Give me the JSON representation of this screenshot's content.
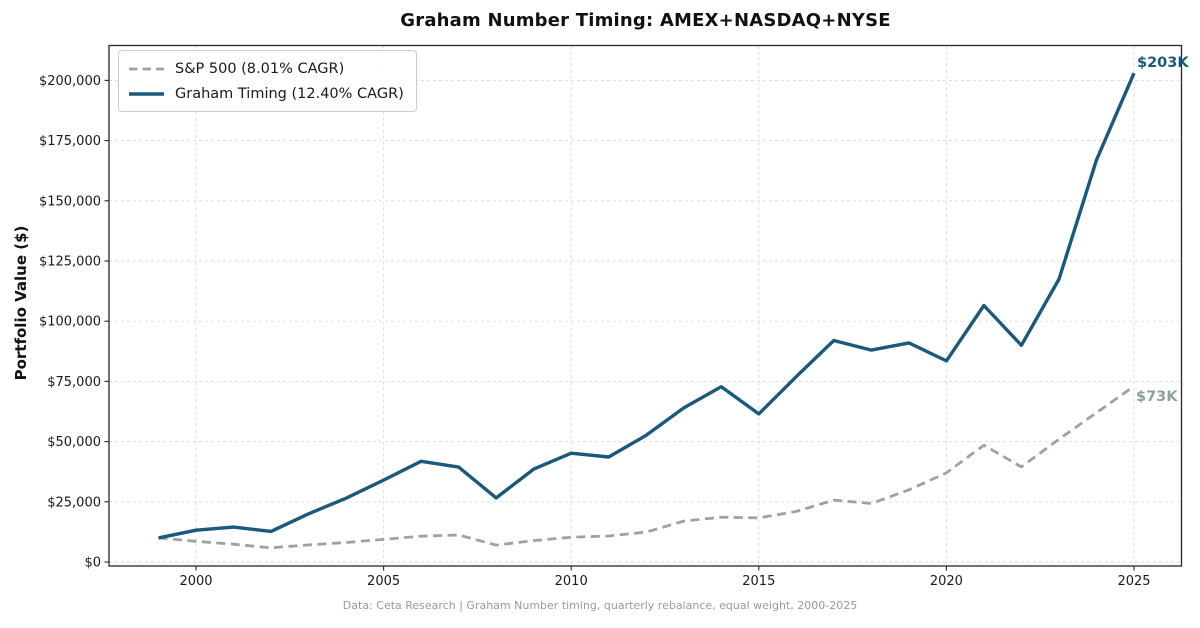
{
  "figure": {
    "title": "Graham Number Timing: AMEX+NASDAQ+NYSE",
    "y_axis_label": "Portfolio Value ($)",
    "footnote": "Data: Ceta Research | Graham Number timing, quarterly rebalance, equal weight, 2000-2025"
  },
  "legend": {
    "position": "upper left",
    "items": [
      {
        "label": "S&P 500 (8.01% CAGR)",
        "color": "#95a5a6",
        "style": "dashed"
      },
      {
        "label": "Graham Timing (12.40% CAGR)",
        "color": "#19597d",
        "style": "solid"
      }
    ]
  },
  "colors": {
    "graham": "#19597d",
    "sp500": "#95a5a6",
    "grid": "#d9d9d9",
    "spine": "#262626",
    "tick_label": "#1a1a1a",
    "footnote": "#8e9e9e"
  },
  "chart_data": {
    "type": "line",
    "x": [
      1999,
      2000,
      2001,
      2002,
      2003,
      2004,
      2005,
      2006,
      2007,
      2008,
      2009,
      2010,
      2011,
      2012,
      2013,
      2014,
      2015,
      2016,
      2017,
      2018,
      2019,
      2020,
      2021,
      2022,
      2023,
      2024,
      2025
    ],
    "series": [
      {
        "name": "S&P 500 (8.01% CAGR)",
        "line_style": "dashed",
        "color": "#95a5a6",
        "values": [
          10000,
          8600,
          7400,
          5900,
          7100,
          8100,
          9400,
          10700,
          11200,
          7000,
          8900,
          10300,
          10800,
          12400,
          17000,
          18600,
          18300,
          21000,
          25700,
          24300,
          30000,
          37000,
          48500,
          39500,
          51000,
          62000,
          73000
        ]
      },
      {
        "name": "Graham Timing (12.40% CAGR)",
        "line_style": "solid",
        "color": "#19597d",
        "values": [
          10000,
          13200,
          14500,
          12700,
          20000,
          26500,
          34000,
          41800,
          39400,
          26600,
          38600,
          45200,
          43600,
          52600,
          64000,
          72800,
          61500,
          77000,
          92000,
          88000,
          91000,
          83500,
          106500,
          90000,
          117500,
          167000,
          203000
        ]
      }
    ],
    "title": "Graham Number Timing: AMEX+NASDAQ+NYSE",
    "xlabel": "",
    "ylabel": "Portfolio Value ($)",
    "xticks": [
      2000,
      2005,
      2010,
      2015,
      2020,
      2025
    ],
    "xtick_labels": [
      "2000",
      "2005",
      "2010",
      "2015",
      "2020",
      "2025"
    ],
    "yticks": [
      0,
      25000,
      50000,
      75000,
      100000,
      125000,
      150000,
      175000,
      200000
    ],
    "ytick_labels": [
      "$0",
      "$25,000",
      "$50,000",
      "$75,000",
      "$100,000",
      "$125,000",
      "$150,000",
      "$175,000",
      "$200,000"
    ],
    "xlim": [
      1998.7,
      2026.3
    ],
    "ylim": [
      -2000,
      215000
    ],
    "grid": true,
    "legend_position": "upper left",
    "end_labels": [
      {
        "text": "$203K",
        "series": "Graham Timing (12.40% CAGR)",
        "x": 2025,
        "y": 203000
      },
      {
        "text": "$73K",
        "series": "S&P 500 (8.01% CAGR)",
        "x": 2025,
        "y": 73000
      }
    ]
  }
}
